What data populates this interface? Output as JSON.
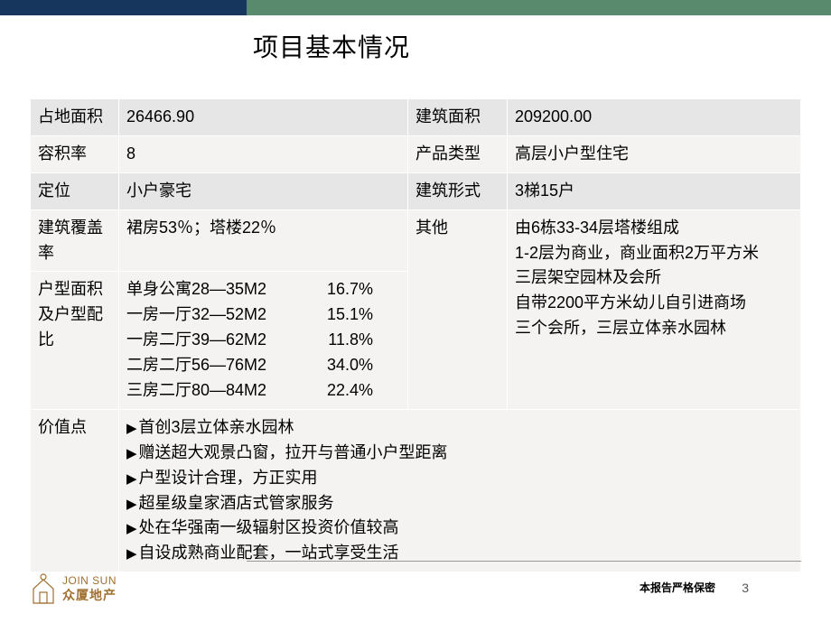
{
  "colors": {
    "bar_left": "#17365d",
    "bar_right": "#5a8a6e",
    "row_grey": "#e6e6e6",
    "row_light": "#f4f3f2",
    "logo": "#a07030"
  },
  "title": "项目基本情况",
  "table": {
    "r1": {
      "l1": "占地面积",
      "v1": "26466.90",
      "l2": "建筑面积",
      "v2": "209200.00"
    },
    "r2": {
      "l1": "容积率",
      "v1": "8",
      "l2": "产品类型",
      "v2": "高层小户型住宅"
    },
    "r3": {
      "l1": "定位",
      "v1": "小户豪宅",
      "l2": "建筑形式",
      "v2": "3梯15户"
    },
    "r4": {
      "l1": "建筑覆盖率",
      "v1": "裙房53％；塔楼22％",
      "l2": "其他",
      "v2_lines": [
        "由6栋33-34层塔楼组成",
        "1-2层为商业，商业面积2万平方米",
        "三层架空园林及会所",
        "自带2200平方米幼儿自引进商场",
        "三个会所，三层立体亲水园林"
      ]
    },
    "r5": {
      "l1": "户型面积及户型配比",
      "units": [
        {
          "name": "单身公寓28—35M2",
          "pct": "16.7%"
        },
        {
          "name": "一房一厅32—52M2",
          "pct": "15.1%"
        },
        {
          "name": "一房二厅39—62M2",
          "pct": "11.8%"
        },
        {
          "name": "二房二厅56—76M2",
          "pct": "34.0%"
        },
        {
          "name": "三房二厅80—84M2",
          "pct": "22.4%"
        }
      ]
    },
    "r6": {
      "l1": "价值点",
      "points": [
        "首创3层立体亲水园林",
        "赠送超大观景凸窗，拉开与普通小户型距离",
        "户型设计合理，方正实用",
        "超星级皇家酒店式管家服务",
        "处在华强南一级辐射区投资价值较高",
        "自设成熟商业配套，一站式享受生活"
      ]
    }
  },
  "footer": {
    "logo_en": "JOIN SUN",
    "logo_cn": "众厦地产",
    "confidential": "本报告严格保密",
    "page": "3"
  }
}
